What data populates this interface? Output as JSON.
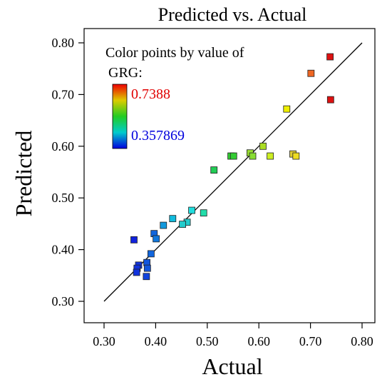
{
  "chart_data": {
    "type": "scatter",
    "title": "Predicted vs. Actual",
    "xlabel": "Actual",
    "ylabel": "Predicted",
    "xlim": [
      0.3,
      0.8
    ],
    "ylim": [
      0.3,
      0.8
    ],
    "xticks": [
      "0.30",
      "0.40",
      "0.50",
      "0.60",
      "0.70",
      "0.80"
    ],
    "yticks": [
      "0.30",
      "0.40",
      "0.50",
      "0.60",
      "0.70",
      "0.80"
    ],
    "grid": false,
    "legend": {
      "line1": "Color points by value of",
      "line2": "GRG:",
      "max_label": "0.7388",
      "min_label": "0.357869",
      "placement": "top-left",
      "max_color": "#e00000",
      "min_color": "#0000dd"
    },
    "reference_line": {
      "from": [
        0.3,
        0.3
      ],
      "to": [
        0.8,
        0.8
      ]
    },
    "points": [
      {
        "x": 0.738,
        "y": 0.773,
        "color": "#dd1111"
      },
      {
        "x": 0.739,
        "y": 0.69,
        "color": "#dd1111"
      },
      {
        "x": 0.701,
        "y": 0.741,
        "color": "#ee6622"
      },
      {
        "x": 0.654,
        "y": 0.672,
        "color": "#eeee00"
      },
      {
        "x": 0.608,
        "y": 0.6,
        "color": "#aadd22"
      },
      {
        "x": 0.583,
        "y": 0.587,
        "color": "#99dd33"
      },
      {
        "x": 0.588,
        "y": 0.581,
        "color": "#88dd33"
      },
      {
        "x": 0.622,
        "y": 0.581,
        "color": "#ccee22"
      },
      {
        "x": 0.666,
        "y": 0.585,
        "color": "#ddcc33"
      },
      {
        "x": 0.672,
        "y": 0.581,
        "color": "#eedd22"
      },
      {
        "x": 0.546,
        "y": 0.581,
        "color": "#33cc33"
      },
      {
        "x": 0.551,
        "y": 0.581,
        "color": "#33cc33"
      },
      {
        "x": 0.513,
        "y": 0.554,
        "color": "#22cc55"
      },
      {
        "x": 0.47,
        "y": 0.476,
        "color": "#22dddd"
      },
      {
        "x": 0.493,
        "y": 0.471,
        "color": "#22ddaa"
      },
      {
        "x": 0.433,
        "y": 0.46,
        "color": "#11bbdd"
      },
      {
        "x": 0.461,
        "y": 0.453,
        "color": "#22cccc"
      },
      {
        "x": 0.452,
        "y": 0.449,
        "color": "#22cccc"
      },
      {
        "x": 0.415,
        "y": 0.447,
        "color": "#1199dd"
      },
      {
        "x": 0.397,
        "y": 0.431,
        "color": "#1166dd"
      },
      {
        "x": 0.401,
        "y": 0.421,
        "color": "#1177dd"
      },
      {
        "x": 0.358,
        "y": 0.419,
        "color": "#1122dd"
      },
      {
        "x": 0.391,
        "y": 0.392,
        "color": "#1166dd"
      },
      {
        "x": 0.367,
        "y": 0.37,
        "color": "#1133dd"
      },
      {
        "x": 0.383,
        "y": 0.375,
        "color": "#1155dd"
      },
      {
        "x": 0.364,
        "y": 0.364,
        "color": "#1133dd"
      },
      {
        "x": 0.384,
        "y": 0.364,
        "color": "#1155dd"
      },
      {
        "x": 0.363,
        "y": 0.356,
        "color": "#1133dd"
      },
      {
        "x": 0.382,
        "y": 0.348,
        "color": "#1144dd"
      }
    ]
  }
}
